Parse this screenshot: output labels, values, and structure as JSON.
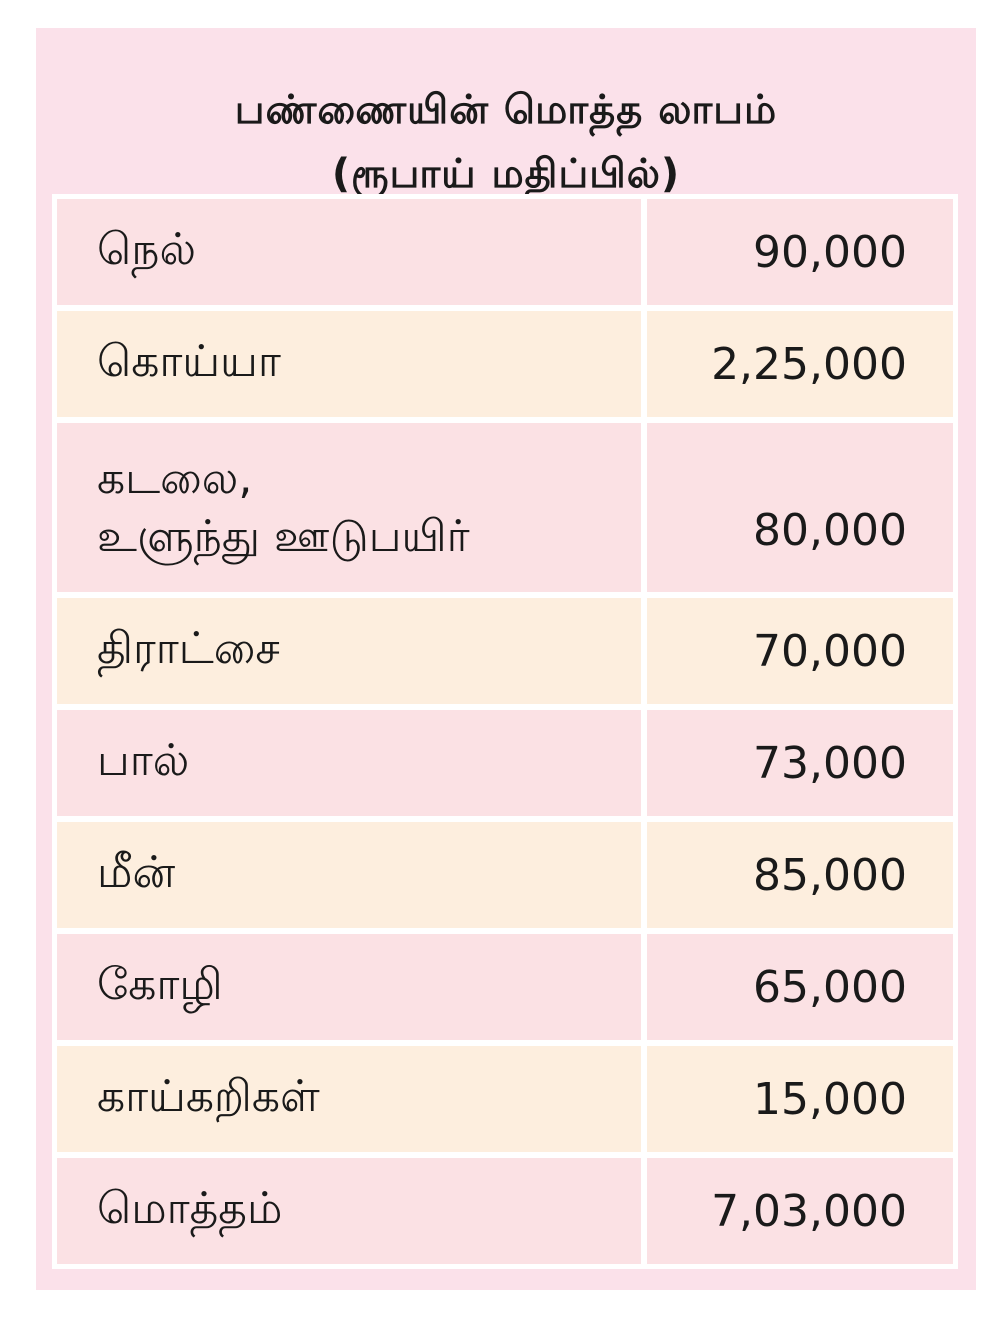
{
  "table": {
    "title_line1": "பண்ணையின் மொத்த லாபம்",
    "title_line2": "(ரூபாய் மதிப்பில்)",
    "rows": [
      {
        "name": "நெல்",
        "value": "90,000"
      },
      {
        "name": "கொய்யா",
        "value": "2,25,000"
      },
      {
        "name_line1": "கடலை,",
        "name_line2": "உளுந்து ஊடுபயிர்",
        "value": "80,000"
      },
      {
        "name": "திராட்சை",
        "value": "70,000"
      },
      {
        "name": "பால்",
        "value": "73,000"
      },
      {
        "name": "மீன்",
        "value": "85,000"
      },
      {
        "name": "கோழி",
        "value": "65,000"
      },
      {
        "name": "காய்கறிகள்",
        "value": "15,000"
      },
      {
        "name": "மொத்தம்",
        "value": "7,03,000"
      }
    ]
  },
  "colors": {
    "panel_bg": "#fbe1ea",
    "row_pink": "#fbe1e4",
    "row_cream": "#fdeede"
  }
}
